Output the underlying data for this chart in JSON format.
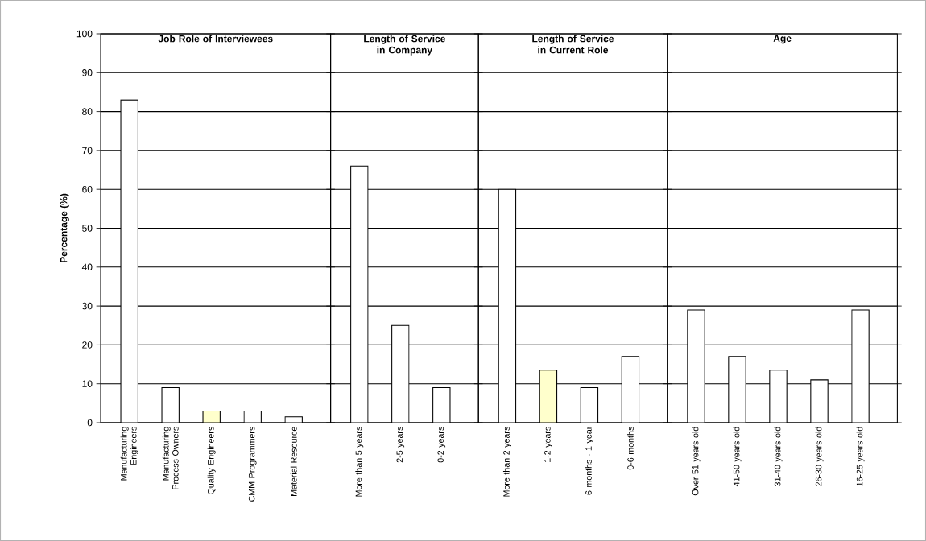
{
  "chart_data": [
    {
      "type": "bar",
      "title": "Job Role of Interviewees",
      "ylabel": "Percentage (%)",
      "categories": [
        "Manufacturing Engineers",
        "Manufacturing Process Owners",
        "Quality Engineers",
        "CMM Programmers",
        "Material Resource"
      ],
      "values": [
        83,
        9,
        3,
        3,
        1.5
      ],
      "colors": [
        "#ffffff",
        "#ffffff",
        "#ffffcc",
        "#ffffff",
        "#ffffff"
      ],
      "ylim": [
        0,
        100
      ],
      "yticks": [
        0,
        10,
        20,
        30,
        40,
        50,
        60,
        70,
        80,
        90,
        100
      ],
      "grid": "y"
    },
    {
      "type": "bar",
      "title": "Length of Service in Company",
      "categories": [
        "More than 5 years",
        "2-5 years",
        "0-2 years"
      ],
      "values": [
        66,
        25,
        9
      ],
      "colors": [
        "#ffffff",
        "#ffffff",
        "#ffffff"
      ],
      "ylim": [
        0,
        100
      ],
      "yticks": [
        0,
        10,
        20,
        30,
        40,
        50,
        60,
        70,
        80,
        90,
        100
      ],
      "grid": "y",
      "tick_labels": "x"
    },
    {
      "type": "bar",
      "title": "Length of Service in Current Role",
      "categories": [
        "More than 2 years",
        "1-2 years",
        "6 months - 1 year",
        "0-6 months"
      ],
      "values": [
        60,
        13.5,
        9,
        17
      ],
      "colors": [
        "#ffffff",
        "#ffffcc",
        "#ffffff",
        "#ffffff"
      ],
      "ylim": [
        0,
        100
      ],
      "yticks": [
        0,
        10,
        20,
        30,
        40,
        50,
        60,
        70,
        80,
        90,
        100
      ],
      "grid": "y",
      "tick_labels": "x"
    },
    {
      "type": "bar",
      "title": "Age",
      "categories": [
        "Over 51 years old",
        "41-50 years old",
        "31-40 years old",
        "26-30 years old",
        "16-25 years old"
      ],
      "values": [
        29,
        17,
        13.5,
        11,
        29
      ],
      "colors": [
        "#ffffff",
        "#ffffff",
        "#ffffff",
        "#ffffff",
        "#ffffff"
      ],
      "ylim": [
        0,
        100
      ],
      "yticks": [
        0,
        10,
        20,
        30,
        40,
        50,
        60,
        70,
        80,
        90,
        100
      ],
      "grid": "y",
      "tick_labels": "x"
    }
  ]
}
